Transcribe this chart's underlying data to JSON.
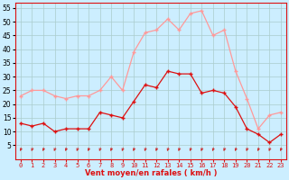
{
  "xlabel": "Vent moyen/en rafales ( km/h )",
  "background_color": "#cceeff",
  "grid_color": "#aacccc",
  "hours": [
    0,
    1,
    2,
    3,
    4,
    5,
    6,
    7,
    8,
    9,
    10,
    11,
    12,
    13,
    14,
    15,
    16,
    17,
    18,
    19,
    20,
    21,
    22,
    23
  ],
  "wind_avg": [
    13,
    12,
    13,
    10,
    11,
    11,
    11,
    17,
    16,
    15,
    21,
    27,
    26,
    32,
    31,
    31,
    24,
    25,
    24,
    19,
    11,
    9,
    6,
    9
  ],
  "wind_gust": [
    23,
    25,
    25,
    23,
    22,
    23,
    23,
    25,
    30,
    25,
    39,
    46,
    47,
    51,
    47,
    53,
    54,
    45,
    47,
    32,
    22,
    11,
    16,
    17
  ],
  "avg_color": "#dd1111",
  "gust_color": "#ff9999",
  "ylim": [
    0,
    57
  ],
  "yticks": [
    5,
    10,
    15,
    20,
    25,
    30,
    35,
    40,
    45,
    50,
    55
  ],
  "arrow_color": "#cc2222",
  "tick_label_color": "#000000",
  "xlabel_color": "#dd1111",
  "spine_color": "#dd1111"
}
